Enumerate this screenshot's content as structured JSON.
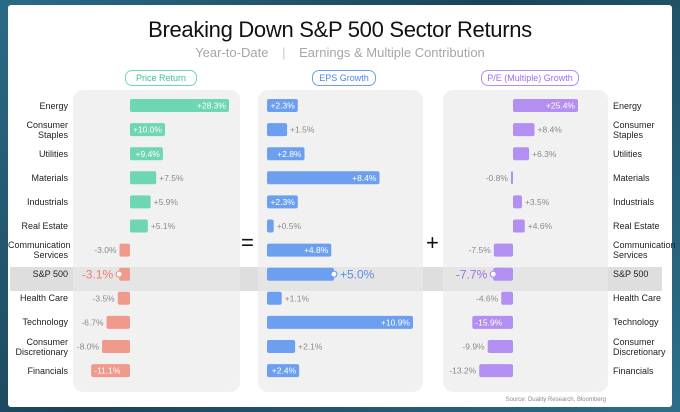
{
  "header": {
    "title": "Breaking Down S&P 500 Sector Returns",
    "subtitle_left": "Year-to-Date",
    "subtitle_right": "Earnings & Multiple Contribution"
  },
  "operators": {
    "equals": "=",
    "plus": "+"
  },
  "source": "Source: Duality Research, Bloomberg",
  "chart_data": [
    {
      "type": "bar",
      "title": "Price Return",
      "color": "#6fd6b4",
      "neg_color": "#ef9a8c",
      "categories": [
        "Energy",
        "Consumer Staples",
        "Utilities",
        "Materials",
        "Industrials",
        "Real Estate",
        "Communication Services",
        "S&P 500",
        "Health Care",
        "Technology",
        "Consumer Discretionary",
        "Financials"
      ],
      "values": [
        28.3,
        10.0,
        9.4,
        7.5,
        5.9,
        5.1,
        -3.0,
        -3.1,
        -3.5,
        -6.7,
        -8.0,
        -11.1
      ],
      "labels": [
        "+28.3%",
        "+10.0%",
        "+9.4%",
        "+7.5%",
        "+5.9%",
        "+5.1%",
        "-3.0%",
        "-3.1%",
        "-3.5%",
        "-6.7%",
        "-8.0%",
        "-11.1%"
      ]
    },
    {
      "type": "bar",
      "title": "EPS Growth",
      "color": "#6d9ff0",
      "neg_color": "#6d9ff0",
      "categories": [
        "Energy",
        "Consumer Staples",
        "Utilities",
        "Materials",
        "Industrials",
        "Real Estate",
        "Communication Services",
        "S&P 500",
        "Health Care",
        "Technology",
        "Consumer Discretionary",
        "Financials"
      ],
      "values": [
        2.3,
        1.5,
        2.8,
        8.4,
        2.3,
        0.5,
        4.8,
        5.0,
        1.1,
        10.9,
        2.1,
        2.4
      ],
      "labels": [
        "+2.3%",
        "+1.5%",
        "+2.8%",
        "+8.4%",
        "+2.3%",
        "+0.5%",
        "+4.8%",
        "+5.0%",
        "+1.1%",
        "+10.9%",
        "+2.1%",
        "+2.4%"
      ]
    },
    {
      "type": "bar",
      "title": "P/E (Multiple) Growth",
      "color": "#b28ff0",
      "neg_color": "#b28ff0",
      "categories": [
        "Energy",
        "Consumer Staples",
        "Utilities",
        "Materials",
        "Industrials",
        "Real Estate",
        "Communication Services",
        "S&P 500",
        "Health Care",
        "Technology",
        "Consumer Discretionary",
        "Financials"
      ],
      "values": [
        25.4,
        8.4,
        6.3,
        -0.8,
        3.5,
        4.6,
        -7.5,
        -7.7,
        -4.6,
        -15.9,
        -9.9,
        -13.2
      ],
      "labels": [
        "+25.4%",
        "+8.4%",
        "+6.3%",
        "-0.8%",
        "+3.5%",
        "+4.6%",
        "-7.5%",
        "-7.7%",
        "-4.6%",
        "-15.9%",
        "-9.9%",
        "-13.2%"
      ]
    }
  ],
  "row_labels": [
    [
      "Energy"
    ],
    [
      "Consumer",
      "Staples"
    ],
    [
      "Utilities"
    ],
    [
      "Materials"
    ],
    [
      "Industrials"
    ],
    [
      "Real Estate"
    ],
    [
      "Communication",
      "Services"
    ],
    [
      "S&P 500"
    ],
    [
      "Health Care"
    ],
    [
      "Technology"
    ],
    [
      "Consumer",
      "Discretionary"
    ],
    [
      "Financials"
    ]
  ],
  "highlight_row": "S&P 500"
}
